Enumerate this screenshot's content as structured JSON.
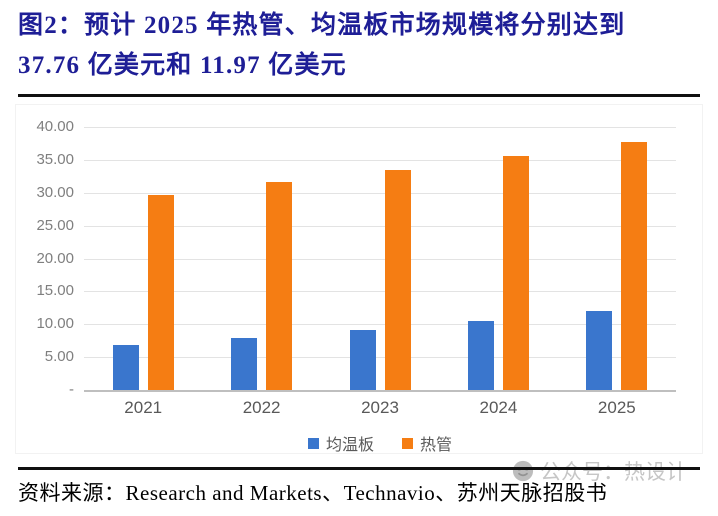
{
  "title": {
    "line1": "图2：预计 2025 年热管、均温板市场规模将分别达到",
    "line2": "37.76 亿美元和 11.97 亿美元"
  },
  "chart_data": {
    "type": "bar",
    "title": "",
    "xlabel": "",
    "ylabel": "",
    "categories": [
      "2021",
      "2022",
      "2023",
      "2024",
      "2025"
    ],
    "series": [
      {
        "name": "均温板",
        "color": "#3a76cd",
        "values": [
          6.9,
          7.95,
          9.1,
          10.45,
          11.97
        ]
      },
      {
        "name": "热管",
        "color": "#f57d13",
        "values": [
          29.7,
          31.6,
          33.5,
          35.6,
          37.76
        ]
      }
    ],
    "ylim": [
      0,
      40
    ],
    "ytick_step": 5,
    "ytick_labels_desc": [
      "40.00",
      "35.00",
      "30.00",
      "25.00",
      "20.00",
      "15.00",
      "10.00",
      "5.00",
      "-"
    ],
    "grid": true,
    "legend_position": "bottom"
  },
  "source": {
    "text": "资料来源：Research and Markets、Technavio、苏州天脉招股书"
  },
  "watermark": {
    "icon": "smiley-face-icon",
    "text": "公众号：热设计",
    "color": "#c6c6c6"
  },
  "colors": {
    "title_navy": "#1e1e96",
    "rule_black": "#101010",
    "gridline": "#e3e3e3",
    "axis_line": "#bfbfbf",
    "tick_gray": "#7f7f7f",
    "label_gray": "#595959"
  }
}
